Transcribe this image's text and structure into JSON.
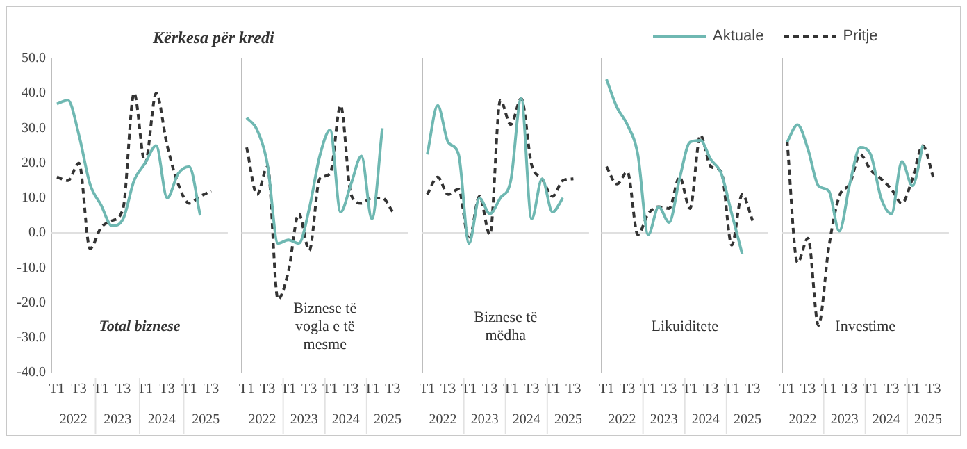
{
  "chart_data": [
    {
      "type": "line",
      "title": "Kërkesa për kredi",
      "legend": "top",
      "grid": false,
      "categories": [
        "T1",
        null,
        "T3",
        null,
        "T1",
        null,
        "T3",
        null,
        "T1",
        null,
        "T3",
        null,
        "T1",
        null,
        "T3",
        null
      ],
      "ylim": [
        -40,
        50
      ],
      "yticks": [
        {
          "value": -40,
          "label": "-40.0"
        },
        {
          "value": -30,
          "label": "-30.0"
        },
        {
          "value": -20,
          "label": "-20.0"
        },
        {
          "value": -10,
          "label": "-10.0"
        },
        {
          "value": 0,
          "label": "0.0"
        },
        {
          "value": 10,
          "label": "10.0"
        },
        {
          "value": 20,
          "label": "20.0"
        },
        {
          "value": 30,
          "label": "30.0"
        },
        {
          "value": 40,
          "label": "40.0"
        },
        {
          "value": 50,
          "label": "50.0"
        }
      ],
      "ref_lines": [
        {
          "axis": "y",
          "value": 0,
          "color": "#e0e0e0"
        }
      ],
      "annotations": [
        "Total biznese",
        "2022",
        "2023",
        "2024",
        "2025"
      ],
      "series": [
        {
          "name": "Aktuale",
          "color": "#6fb8b2",
          "line_style": "solid",
          "values": [
            37,
            38,
            28,
            14,
            8,
            2,
            4,
            15,
            20,
            25,
            10,
            17,
            19,
            5,
            null,
            null
          ]
        },
        {
          "name": "Pritje",
          "color": "#333333",
          "line_style": "dashed",
          "values": [
            16,
            15,
            20,
            -4.5,
            1.5,
            3.5,
            7,
            40,
            20,
            40,
            25,
            14,
            8.5,
            10.5,
            12,
            null
          ]
        }
      ]
    },
    {
      "type": "line",
      "legend": false,
      "grid": false,
      "tick_labels": "x",
      "categories": [
        "T1",
        null,
        "T3",
        null,
        "T1",
        null,
        "T3",
        null,
        "T1",
        null,
        "T3",
        null,
        "T1",
        null,
        "T3",
        null
      ],
      "ylim": [
        -40,
        50
      ],
      "ref_lines": [
        {
          "axis": "y",
          "value": 0,
          "color": "#e0e0e0"
        }
      ],
      "annotations": [
        "Biznese të vogla e të mesme",
        "2022",
        "2023",
        "2024",
        "2025"
      ],
      "series": [
        {
          "color": "#6fb8b2",
          "line_style": "solid",
          "values": [
            33,
            29.5,
            19.5,
            -3,
            -2,
            -3,
            7,
            22,
            29.5,
            6,
            14,
            22,
            4,
            30,
            null,
            null
          ]
        },
        {
          "color": "#333333",
          "line_style": "dashed",
          "values": [
            24.5,
            11,
            19,
            -19,
            -11,
            5.5,
            -5,
            15.5,
            17,
            36.5,
            11,
            8.5,
            10,
            10,
            6,
            null
          ]
        }
      ]
    },
    {
      "type": "line",
      "legend": false,
      "grid": false,
      "tick_labels": "x",
      "categories": [
        "T1",
        null,
        "T3",
        null,
        "T1",
        null,
        "T3",
        null,
        "T1",
        null,
        "T3",
        null,
        "T1",
        null,
        "T3",
        null
      ],
      "ylim": [
        -40,
        50
      ],
      "ref_lines": [
        {
          "axis": "y",
          "value": 0,
          "color": "#e0e0e0"
        }
      ],
      "annotations": [
        "Biznese të mëdha",
        "2022",
        "2023",
        "2024",
        "2025"
      ],
      "series": [
        {
          "color": "#6fb8b2",
          "line_style": "solid",
          "values": [
            22.5,
            36.5,
            26,
            22.5,
            -3,
            10,
            5.5,
            10,
            15,
            38.5,
            4,
            15.5,
            6,
            10,
            null,
            null
          ]
        },
        {
          "color": "#333333",
          "line_style": "dashed",
          "values": [
            11,
            16,
            11,
            12.5,
            -2,
            10.5,
            -0.5,
            38,
            31,
            38.5,
            19.5,
            15.5,
            10.5,
            15,
            15.5,
            null
          ]
        }
      ]
    },
    {
      "type": "line",
      "legend": false,
      "grid": false,
      "tick_labels": "x",
      "categories": [
        "T1",
        null,
        "T3",
        null,
        "T1",
        null,
        "T3",
        null,
        "T1",
        null,
        "T3",
        null,
        "T1",
        null,
        "T3",
        null
      ],
      "ylim": [
        -40,
        50
      ],
      "ref_lines": [
        {
          "axis": "y",
          "value": 0,
          "color": "#e0e0e0"
        }
      ],
      "annotations": [
        "Likuiditete",
        "2022",
        "2023",
        "2024",
        "2025"
      ],
      "series": [
        {
          "color": "#6fb8b2",
          "line_style": "solid",
          "values": [
            44,
            36,
            31,
            22.5,
            -0.5,
            7.5,
            3,
            15.5,
            26,
            26.5,
            21,
            17,
            5.5,
            -6,
            null,
            null
          ]
        },
        {
          "color": "#333333",
          "line_style": "dashed",
          "values": [
            19,
            14,
            17.5,
            -0.5,
            5.5,
            7.5,
            7,
            16,
            7,
            28,
            19,
            17.5,
            -3.5,
            11,
            3.5,
            null
          ]
        }
      ]
    },
    {
      "type": "line",
      "legend": false,
      "grid": false,
      "tick_labels": "x",
      "categories": [
        "T1",
        null,
        "T3",
        null,
        "T1",
        null,
        "T3",
        null,
        "T1",
        null,
        "T3",
        null,
        "T1",
        null,
        "T3",
        null
      ],
      "ylim": [
        -40,
        50
      ],
      "ref_lines": [
        {
          "axis": "y",
          "value": 0,
          "color": "#e0e0e0"
        }
      ],
      "annotations": [
        "Investime",
        "2022",
        "2023",
        "2024",
        "2025"
      ],
      "series": [
        {
          "color": "#6fb8b2",
          "line_style": "solid",
          "values": [
            26,
            31,
            24,
            13.5,
            12,
            0.5,
            14,
            24.5,
            22.5,
            10,
            5.5,
            20.5,
            13.5,
            25,
            null,
            null
          ]
        },
        {
          "color": "#333333",
          "line_style": "dashed",
          "values": [
            26.5,
            -8.5,
            -1.5,
            -26.5,
            -4,
            10.5,
            14,
            22.5,
            18,
            15.5,
            12.5,
            8.5,
            15.5,
            25,
            16,
            null
          ]
        }
      ]
    }
  ]
}
